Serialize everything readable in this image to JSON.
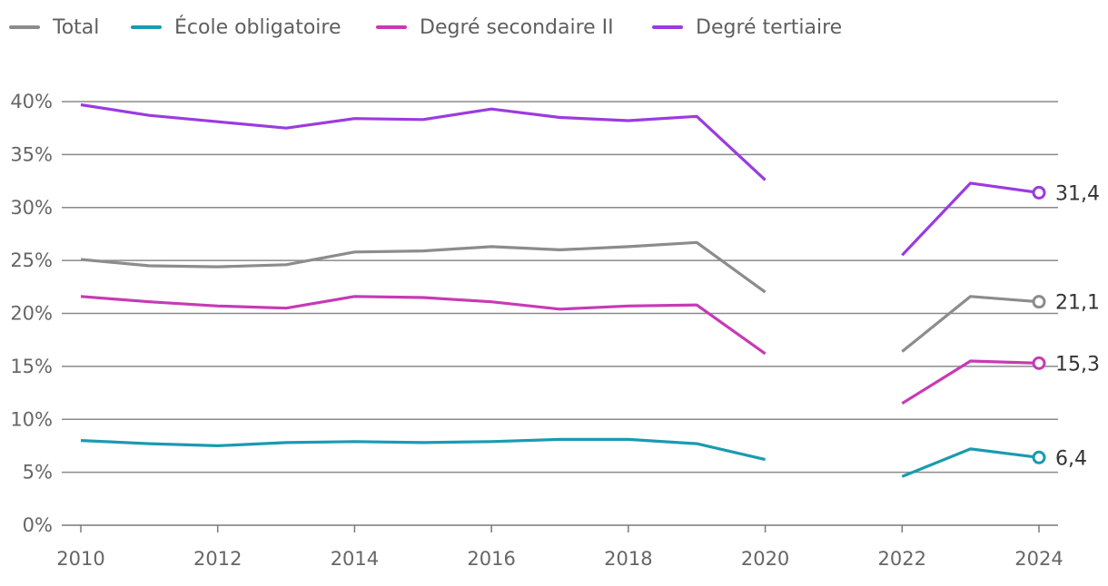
{
  "chart_data": {
    "type": "line",
    "x": [
      2010,
      2011,
      2012,
      2013,
      2014,
      2015,
      2016,
      2017,
      2018,
      2019,
      2020,
      2021,
      2022,
      2023,
      2024
    ],
    "series": [
      {
        "name": "Total",
        "color": "#8c8c8c",
        "values": [
          25.1,
          24.5,
          24.4,
          24.6,
          25.8,
          25.9,
          26.3,
          26.0,
          26.3,
          26.7,
          22.0,
          null,
          16.4,
          21.6,
          21.1
        ],
        "end_label": "21,1"
      },
      {
        "name": "École obligatoire",
        "color": "#1a9bb0",
        "values": [
          8.0,
          7.7,
          7.5,
          7.8,
          7.9,
          7.8,
          7.9,
          8.1,
          8.1,
          7.7,
          6.2,
          null,
          4.6,
          7.2,
          6.4
        ],
        "end_label": "6,4"
      },
      {
        "name": "Degré secondaire II",
        "color": "#c73ab5",
        "values": [
          21.6,
          21.1,
          20.7,
          20.5,
          21.6,
          21.5,
          21.1,
          20.4,
          20.7,
          20.8,
          16.2,
          null,
          11.5,
          15.5,
          15.3
        ],
        "end_label": "15,3"
      },
      {
        "name": "Degré tertiaire",
        "color": "#9b3be0",
        "values": [
          39.7,
          38.7,
          38.1,
          37.5,
          38.4,
          38.3,
          39.3,
          38.5,
          38.2,
          38.6,
          32.6,
          null,
          25.5,
          32.3,
          31.4
        ],
        "end_label": "31,4"
      }
    ],
    "y_ticks": [
      "0%",
      "5%",
      "10%",
      "15%",
      "20%",
      "25%",
      "30%",
      "35%",
      "40%"
    ],
    "y_tick_values": [
      0,
      5,
      10,
      15,
      20,
      25,
      30,
      35,
      40
    ],
    "x_ticks": [
      "2010",
      "2012",
      "2014",
      "2016",
      "2018",
      "2020",
      "2022",
      "2024"
    ],
    "x_tick_values": [
      2010,
      2012,
      2014,
      2016,
      2018,
      2020,
      2022,
      2024
    ],
    "ylim": [
      0,
      40
    ],
    "xlim": [
      2010,
      2024
    ],
    "grid": true,
    "legend_position": "top-left"
  }
}
